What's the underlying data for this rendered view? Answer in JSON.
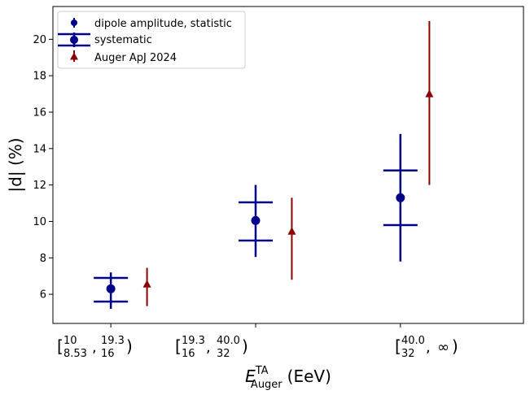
{
  "chart_data": {
    "type": "scatter",
    "xlabel_main": "E",
    "xlabel_sup": "TA",
    "xlabel_sub": "Auger",
    "xlabel_unit": "(EeV)",
    "ylabel": "|d| (%)",
    "ylim": [
      4.4,
      21.8
    ],
    "yticks": [
      6,
      8,
      10,
      12,
      14,
      16,
      18,
      20
    ],
    "categories": [
      {
        "name": "bin1",
        "open": "[",
        "lower_top": "10",
        "lower_bottom": "8.53",
        "sep": ",",
        "upper_top": "19.3",
        "upper_bottom": "16",
        "close": ")",
        "x": 1.0
      },
      {
        "name": "bin2",
        "open": "[",
        "lower_top": "19.3",
        "lower_bottom": "16",
        "sep": ",",
        "upper_top": "40.0",
        "upper_bottom": "32",
        "close": ")",
        "x": 2.0
      },
      {
        "name": "bin3",
        "open": "[",
        "lower_top": "40.0",
        "lower_bottom": "32",
        "sep": ",",
        "upper_text": "∞",
        "close": ")",
        "x": 3.0
      }
    ],
    "xlim": [
      0.6,
      3.85
    ],
    "series": [
      {
        "name": "dipole amplitude, statistic",
        "color": "#00008b",
        "marker": "circle",
        "x": [
          1.0,
          2.0,
          3.0
        ],
        "y": [
          6.3,
          10.05,
          11.3
        ],
        "yerr_low": [
          5.2,
          8.05,
          7.8
        ],
        "yerr_high": [
          7.2,
          12.0,
          14.8
        ]
      },
      {
        "name": "systematic",
        "color": "#00008b",
        "x": [
          1.0,
          2.0,
          3.0
        ],
        "sys_low": [
          5.6,
          8.95,
          9.8
        ],
        "sys_high": [
          6.9,
          11.05,
          12.8
        ]
      },
      {
        "name": "Auger ApJ 2024",
        "color": "#8b0000",
        "marker": "triangle",
        "x": [
          1.25,
          2.25,
          3.2
        ],
        "y": [
          6.55,
          9.45,
          17.0
        ],
        "yerr_low": [
          5.35,
          6.8,
          12.0
        ],
        "yerr_high": [
          7.45,
          11.3,
          21.0
        ]
      }
    ],
    "legend": {
      "placement": "top-left",
      "entries": [
        "dipole amplitude, statistic",
        "systematic",
        "Auger ApJ 2024"
      ]
    }
  }
}
